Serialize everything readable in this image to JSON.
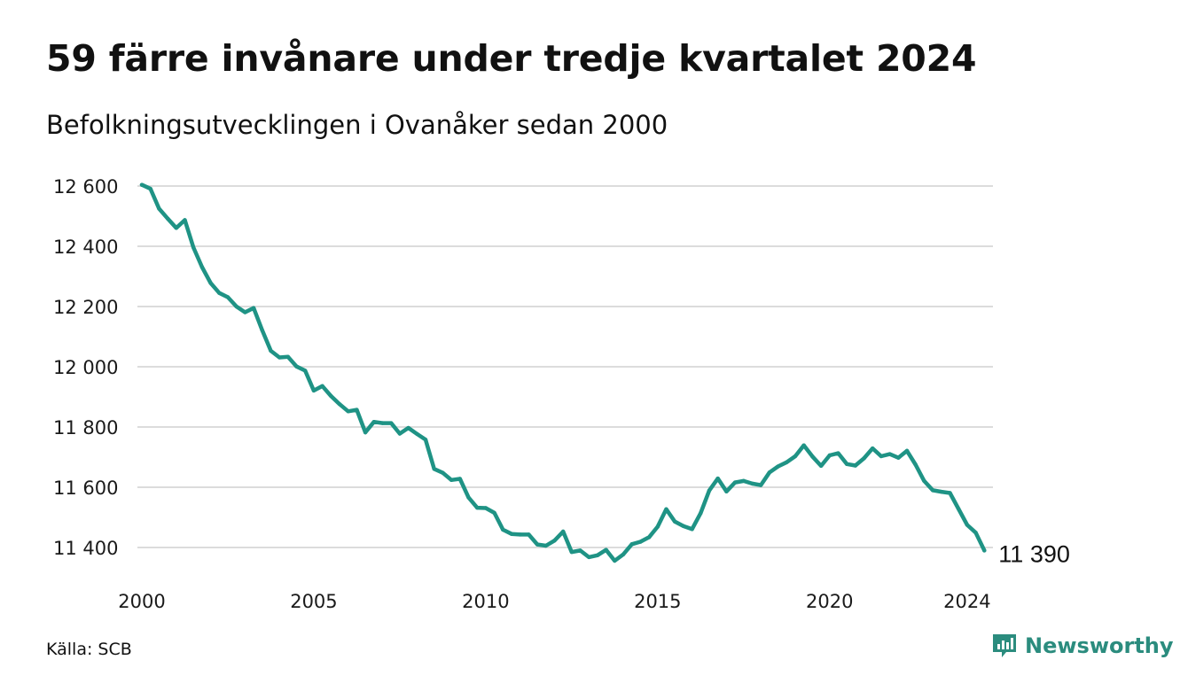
{
  "title": "59 färre invånare under tredje kvartalet 2024",
  "subtitle": "Befolkningsutvecklingen i Ovanåker sedan 2000",
  "source": "Källa: SCB",
  "brand": {
    "name": "Newsworthy",
    "icon": "newsworthy-logo-icon",
    "color": "#2b8c7e"
  },
  "chart_data": {
    "type": "line",
    "title": "59 färre invånare under tredje kvartalet 2024",
    "subtitle": "Befolkningsutvecklingen i Ovanåker sedan 2000",
    "xlabel": "",
    "ylabel": "",
    "xlim": [
      2000,
      2024.75
    ],
    "ylim": [
      11350,
      12620
    ],
    "grid": true,
    "line_color": "#1f9385",
    "x_ticks": [
      2000,
      2005,
      2010,
      2015,
      2020,
      2024
    ],
    "x_tick_labels": [
      "2000",
      "2005",
      "2010",
      "2015",
      "2020",
      "2024"
    ],
    "y_ticks": [
      11400,
      11600,
      11800,
      12000,
      12200,
      12400,
      12600
    ],
    "y_tick_labels": [
      "11 400",
      "11 600",
      "11 800",
      "12 000",
      "12 200",
      "12 400",
      "12 600"
    ],
    "end_label": "11 390",
    "series": [
      {
        "x": [
          2000.0,
          2000.25,
          2000.5,
          2000.75,
          2001.0,
          2001.25,
          2001.5,
          2001.75,
          2002.0,
          2002.25,
          2002.5,
          2002.75,
          2003.0,
          2003.25,
          2003.5,
          2003.75,
          2004.0,
          2004.25,
          2004.5,
          2004.75,
          2005.0,
          2005.25,
          2005.5,
          2005.75,
          2006.0,
          2006.25,
          2006.5,
          2006.75,
          2007.0,
          2007.25,
          2007.5,
          2007.75,
          2008.0,
          2008.25,
          2008.5,
          2008.75,
          2009.0,
          2009.25,
          2009.5,
          2009.75,
          2010.0,
          2010.25,
          2010.5,
          2010.75,
          2011.0,
          2011.25,
          2011.5,
          2011.75,
          2012.0,
          2012.25,
          2012.5,
          2012.75,
          2013.0,
          2013.25,
          2013.5,
          2013.75,
          2014.0,
          2014.25,
          2014.5,
          2014.75,
          2015.0,
          2015.25,
          2015.5,
          2015.75,
          2016.0,
          2016.25,
          2016.5,
          2016.75,
          2017.0,
          2017.25,
          2017.5,
          2017.75,
          2018.0,
          2018.25,
          2018.5,
          2018.75,
          2019.0,
          2019.25,
          2019.5,
          2019.75,
          2020.0,
          2020.25,
          2020.5,
          2020.75,
          2021.0,
          2021.25,
          2021.5,
          2021.75,
          2022.0,
          2022.25,
          2022.5,
          2022.75,
          2023.0,
          2023.25,
          2023.5,
          2023.75,
          2024.0,
          2024.25,
          2024.5
        ],
        "values": [
          12604,
          12591,
          12525,
          12492,
          12461,
          12487,
          12396,
          12331,
          12278,
          12245,
          12231,
          12200,
          12181,
          12195,
          12121,
          12053,
          12031,
          12033,
          12001,
          11987,
          11921,
          11936,
          11903,
          11876,
          11852,
          11857,
          11782,
          11817,
          11813,
          11813,
          11778,
          11797,
          11777,
          11758,
          11661,
          11648,
          11624,
          11628,
          11566,
          11532,
          11531,
          11515,
          11459,
          11445,
          11443,
          11443,
          11410,
          11406,
          11423,
          11453,
          11385,
          11390,
          11368,
          11374,
          11392,
          11356,
          11377,
          11411,
          11419,
          11434,
          11469,
          11527,
          11486,
          11471,
          11461,
          11514,
          11589,
          11629,
          11586,
          11616,
          11621,
          11612,
          11607,
          11649,
          11669,
          11683,
          11703,
          11739,
          11702,
          11671,
          11706,
          11713,
          11677,
          11672,
          11696,
          11729,
          11703,
          11710,
          11698,
          11721,
          11675,
          11621,
          11590,
          11585,
          11581,
          11528,
          11475,
          11449,
          11390
        ]
      }
    ]
  }
}
